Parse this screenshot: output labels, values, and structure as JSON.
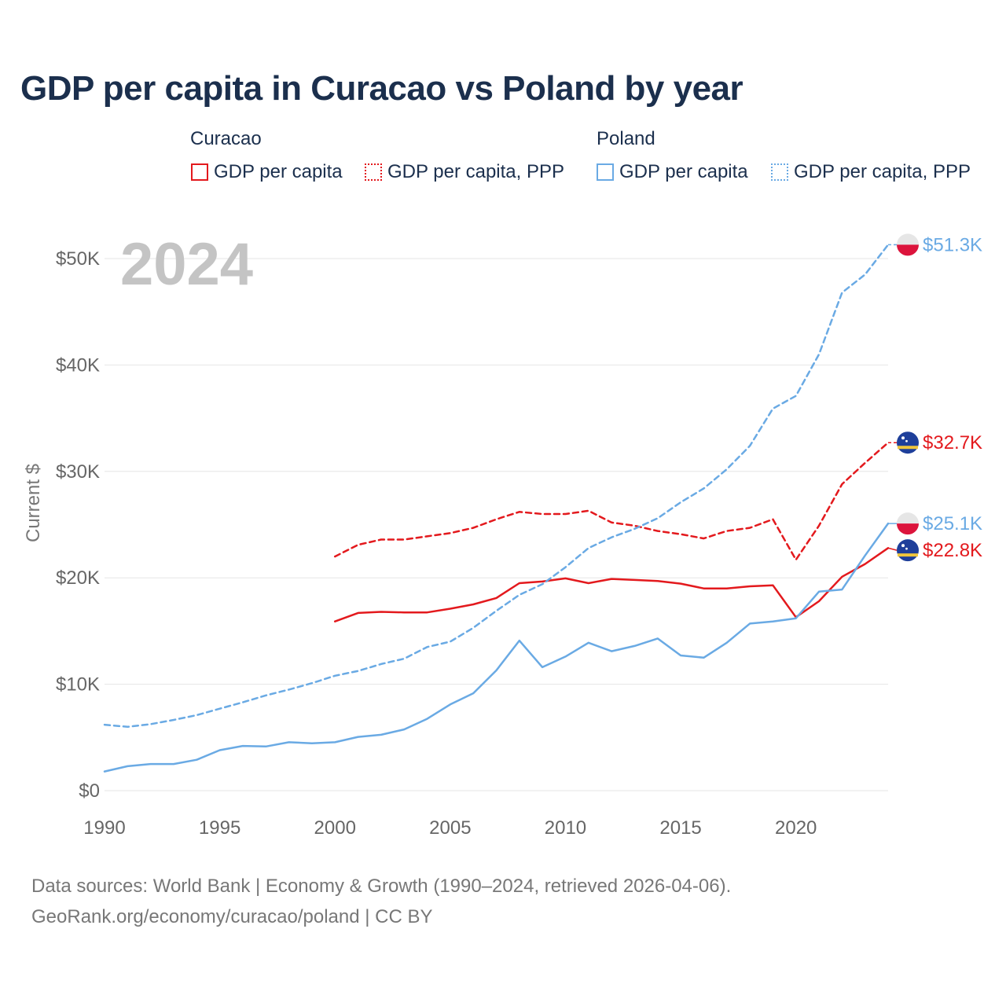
{
  "title": "GDP per capita in Curacao vs Poland by year",
  "legend": {
    "groups": [
      {
        "name": "Curacao",
        "items": [
          "GDP per capita",
          "GDP per capita, PPP"
        ]
      },
      {
        "name": "Poland",
        "items": [
          "GDP per capita",
          "GDP per capita, PPP"
        ]
      }
    ]
  },
  "year_overlay": "2024",
  "source_lines": [
    "Data sources: World Bank | Economy & Growth (1990–2024, retrieved 2026-04-06).",
    "GeoRank.org/economy/curacao/poland | CC BY"
  ],
  "colors": {
    "curacao": "#e3191d",
    "poland": "#6aaae4",
    "grid": "#e6e6e6",
    "axis_text": "#666666"
  },
  "chart_data": {
    "type": "line",
    "title": "GDP per capita in Curacao vs Poland by year",
    "xlabel": "",
    "ylabel": "Current $",
    "xlim": [
      1990,
      2024
    ],
    "ylim": [
      0,
      50000
    ],
    "x_ticks": [
      1990,
      1995,
      2000,
      2005,
      2010,
      2015,
      2020
    ],
    "x_tick_labels": [
      "1990",
      "1995",
      "2000",
      "2005",
      "2010",
      "2015",
      "2020"
    ],
    "y_ticks": [
      0,
      10000,
      20000,
      30000,
      40000,
      50000
    ],
    "y_tick_labels": [
      "$0",
      "$10K",
      "$20K",
      "$30K",
      "$40K",
      "$50K"
    ],
    "grid": true,
    "legend_position": "top",
    "series": [
      {
        "name": "Curacao GDP per capita",
        "country": "curacao",
        "style": "solid",
        "end_label": "$22.8K",
        "x": [
          2000,
          2001,
          2002,
          2003,
          2004,
          2005,
          2006,
          2007,
          2008,
          2009,
          2010,
          2011,
          2012,
          2013,
          2014,
          2015,
          2016,
          2017,
          2018,
          2019,
          2020,
          2021,
          2022,
          2023,
          2024
        ],
        "values": [
          15900,
          16700,
          16800,
          16750,
          16750,
          17100,
          17500,
          18100,
          19500,
          19650,
          19950,
          19500,
          19900,
          19800,
          19700,
          19450,
          19000,
          19000,
          19200,
          19300,
          16300,
          17800,
          20100,
          21300,
          22800
        ]
      },
      {
        "name": "Curacao GDP per capita, PPP",
        "country": "curacao",
        "style": "dashed",
        "end_label": "$32.7K",
        "x": [
          2000,
          2001,
          2002,
          2003,
          2004,
          2005,
          2006,
          2007,
          2008,
          2009,
          2010,
          2011,
          2012,
          2013,
          2014,
          2015,
          2016,
          2017,
          2018,
          2019,
          2020,
          2021,
          2022,
          2023,
          2024
        ],
        "values": [
          22000,
          23100,
          23600,
          23600,
          23900,
          24200,
          24700,
          25500,
          26200,
          26000,
          26000,
          26300,
          25200,
          24900,
          24400,
          24100,
          23700,
          24400,
          24700,
          25500,
          21700,
          24900,
          28800,
          30800,
          32700
        ]
      },
      {
        "name": "Poland GDP per capita",
        "country": "poland",
        "style": "solid",
        "end_label": "$25.1K",
        "x": [
          1990,
          1991,
          1992,
          1993,
          1994,
          1995,
          1996,
          1997,
          1998,
          1999,
          2000,
          2001,
          2002,
          2003,
          2004,
          2005,
          2006,
          2007,
          2008,
          2009,
          2010,
          2011,
          2012,
          2013,
          2014,
          2015,
          2016,
          2017,
          2018,
          2019,
          2020,
          2021,
          2022,
          2023,
          2024
        ],
        "values": [
          1800,
          2300,
          2500,
          2500,
          2900,
          3800,
          4200,
          4150,
          4550,
          4450,
          4550,
          5050,
          5250,
          5750,
          6750,
          8100,
          9150,
          11300,
          14100,
          11600,
          12600,
          13900,
          13100,
          13600,
          14300,
          12700,
          12500,
          13900,
          15700,
          15900,
          16200,
          18700,
          18900,
          22100,
          25100
        ]
      },
      {
        "name": "Poland GDP per capita, PPP",
        "country": "poland",
        "style": "dashed",
        "end_label": "$51.3K",
        "x": [
          1990,
          1991,
          1992,
          1993,
          1994,
          1995,
          1996,
          1997,
          1998,
          1999,
          2000,
          2001,
          2002,
          2003,
          2004,
          2005,
          2006,
          2007,
          2008,
          2009,
          2010,
          2011,
          2012,
          2013,
          2014,
          2015,
          2016,
          2017,
          2018,
          2019,
          2020,
          2021,
          2022,
          2023,
          2024
        ],
        "values": [
          6200,
          6000,
          6250,
          6650,
          7100,
          7700,
          8300,
          8950,
          9500,
          10100,
          10800,
          11250,
          11900,
          12400,
          13500,
          14000,
          15300,
          16900,
          18400,
          19400,
          21000,
          22800,
          23800,
          24600,
          25600,
          27100,
          28400,
          30200,
          32400,
          35900,
          37100,
          41000,
          46800,
          48500,
          51300
        ]
      }
    ]
  }
}
